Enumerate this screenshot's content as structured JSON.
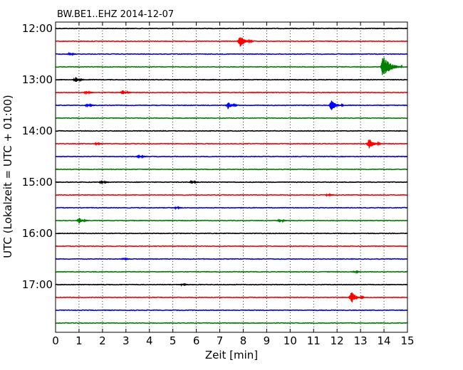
{
  "chart_data": {
    "type": "line",
    "title": "BW.BE1..EHZ 2014-12-07",
    "xlabel": "Zeit  [min]",
    "ylabel": "UTC (Lokalzeit = UTC + 01:00)",
    "xlim": [
      0,
      15
    ],
    "x_ticks": [
      "0",
      "1",
      "2",
      "3",
      "4",
      "5",
      "6",
      "7",
      "8",
      "9",
      "10",
      "11",
      "12",
      "13",
      "14",
      "15"
    ],
    "y_tick_labels": [
      "12:00",
      "13:00",
      "14:00",
      "15:00",
      "16:00",
      "17:00"
    ],
    "grid": {
      "x": "dotted",
      "y": "none"
    },
    "trace_interval_min": 15,
    "trace_color_cycle": [
      "#000000",
      "#ff0000",
      "#0000ff",
      "#008000"
    ],
    "traces": [
      {
        "start": "12:00",
        "events": []
      },
      {
        "start": "12:15",
        "events": [
          {
            "t": 7.85,
            "amp": 1.0
          }
        ]
      },
      {
        "start": "12:30",
        "events": [
          {
            "t": 0.6,
            "amp": 0.25
          }
        ]
      },
      {
        "start": "12:45",
        "events": [
          {
            "t": 13.95,
            "amp": 1.8
          }
        ]
      },
      {
        "start": "13:00",
        "events": [
          {
            "t": 0.85,
            "amp": 0.45
          }
        ]
      },
      {
        "start": "13:15",
        "events": [
          {
            "t": 1.3,
            "amp": 0.3
          },
          {
            "t": 2.85,
            "amp": 0.45
          }
        ]
      },
      {
        "start": "13:30",
        "events": [
          {
            "t": 1.35,
            "amp": 0.35
          },
          {
            "t": 7.35,
            "amp": 0.6
          },
          {
            "t": 11.75,
            "amp": 0.95
          }
        ]
      },
      {
        "start": "13:45",
        "events": []
      },
      {
        "start": "14:00",
        "events": []
      },
      {
        "start": "14:15",
        "events": [
          {
            "t": 1.75,
            "amp": 0.2
          },
          {
            "t": 13.35,
            "amp": 0.9
          }
        ]
      },
      {
        "start": "14:30",
        "events": [
          {
            "t": 3.55,
            "amp": 0.3
          }
        ]
      },
      {
        "start": "14:45",
        "events": []
      },
      {
        "start": "15:00",
        "events": [
          {
            "t": 1.95,
            "amp": 0.35
          },
          {
            "t": 5.8,
            "amp": 0.3
          }
        ]
      },
      {
        "start": "15:15",
        "events": [
          {
            "t": 11.6,
            "amp": 0.2
          }
        ]
      },
      {
        "start": "15:30",
        "events": [
          {
            "t": 5.15,
            "amp": 0.2
          }
        ]
      },
      {
        "start": "15:45",
        "events": [
          {
            "t": 1.0,
            "amp": 0.5
          },
          {
            "t": 9.55,
            "amp": 0.3
          }
        ]
      },
      {
        "start": "16:00",
        "events": []
      },
      {
        "start": "16:15",
        "events": []
      },
      {
        "start": "16:30",
        "events": [
          {
            "t": 2.9,
            "amp": 0.2
          }
        ]
      },
      {
        "start": "16:45",
        "events": [
          {
            "t": 12.75,
            "amp": 0.2
          }
        ]
      },
      {
        "start": "17:00",
        "events": [
          {
            "t": 5.4,
            "amp": 0.2
          }
        ]
      },
      {
        "start": "17:15",
        "events": [
          {
            "t": 12.6,
            "amp": 1.0
          }
        ]
      },
      {
        "start": "17:30",
        "events": []
      },
      {
        "start": "17:45",
        "events": []
      }
    ]
  }
}
